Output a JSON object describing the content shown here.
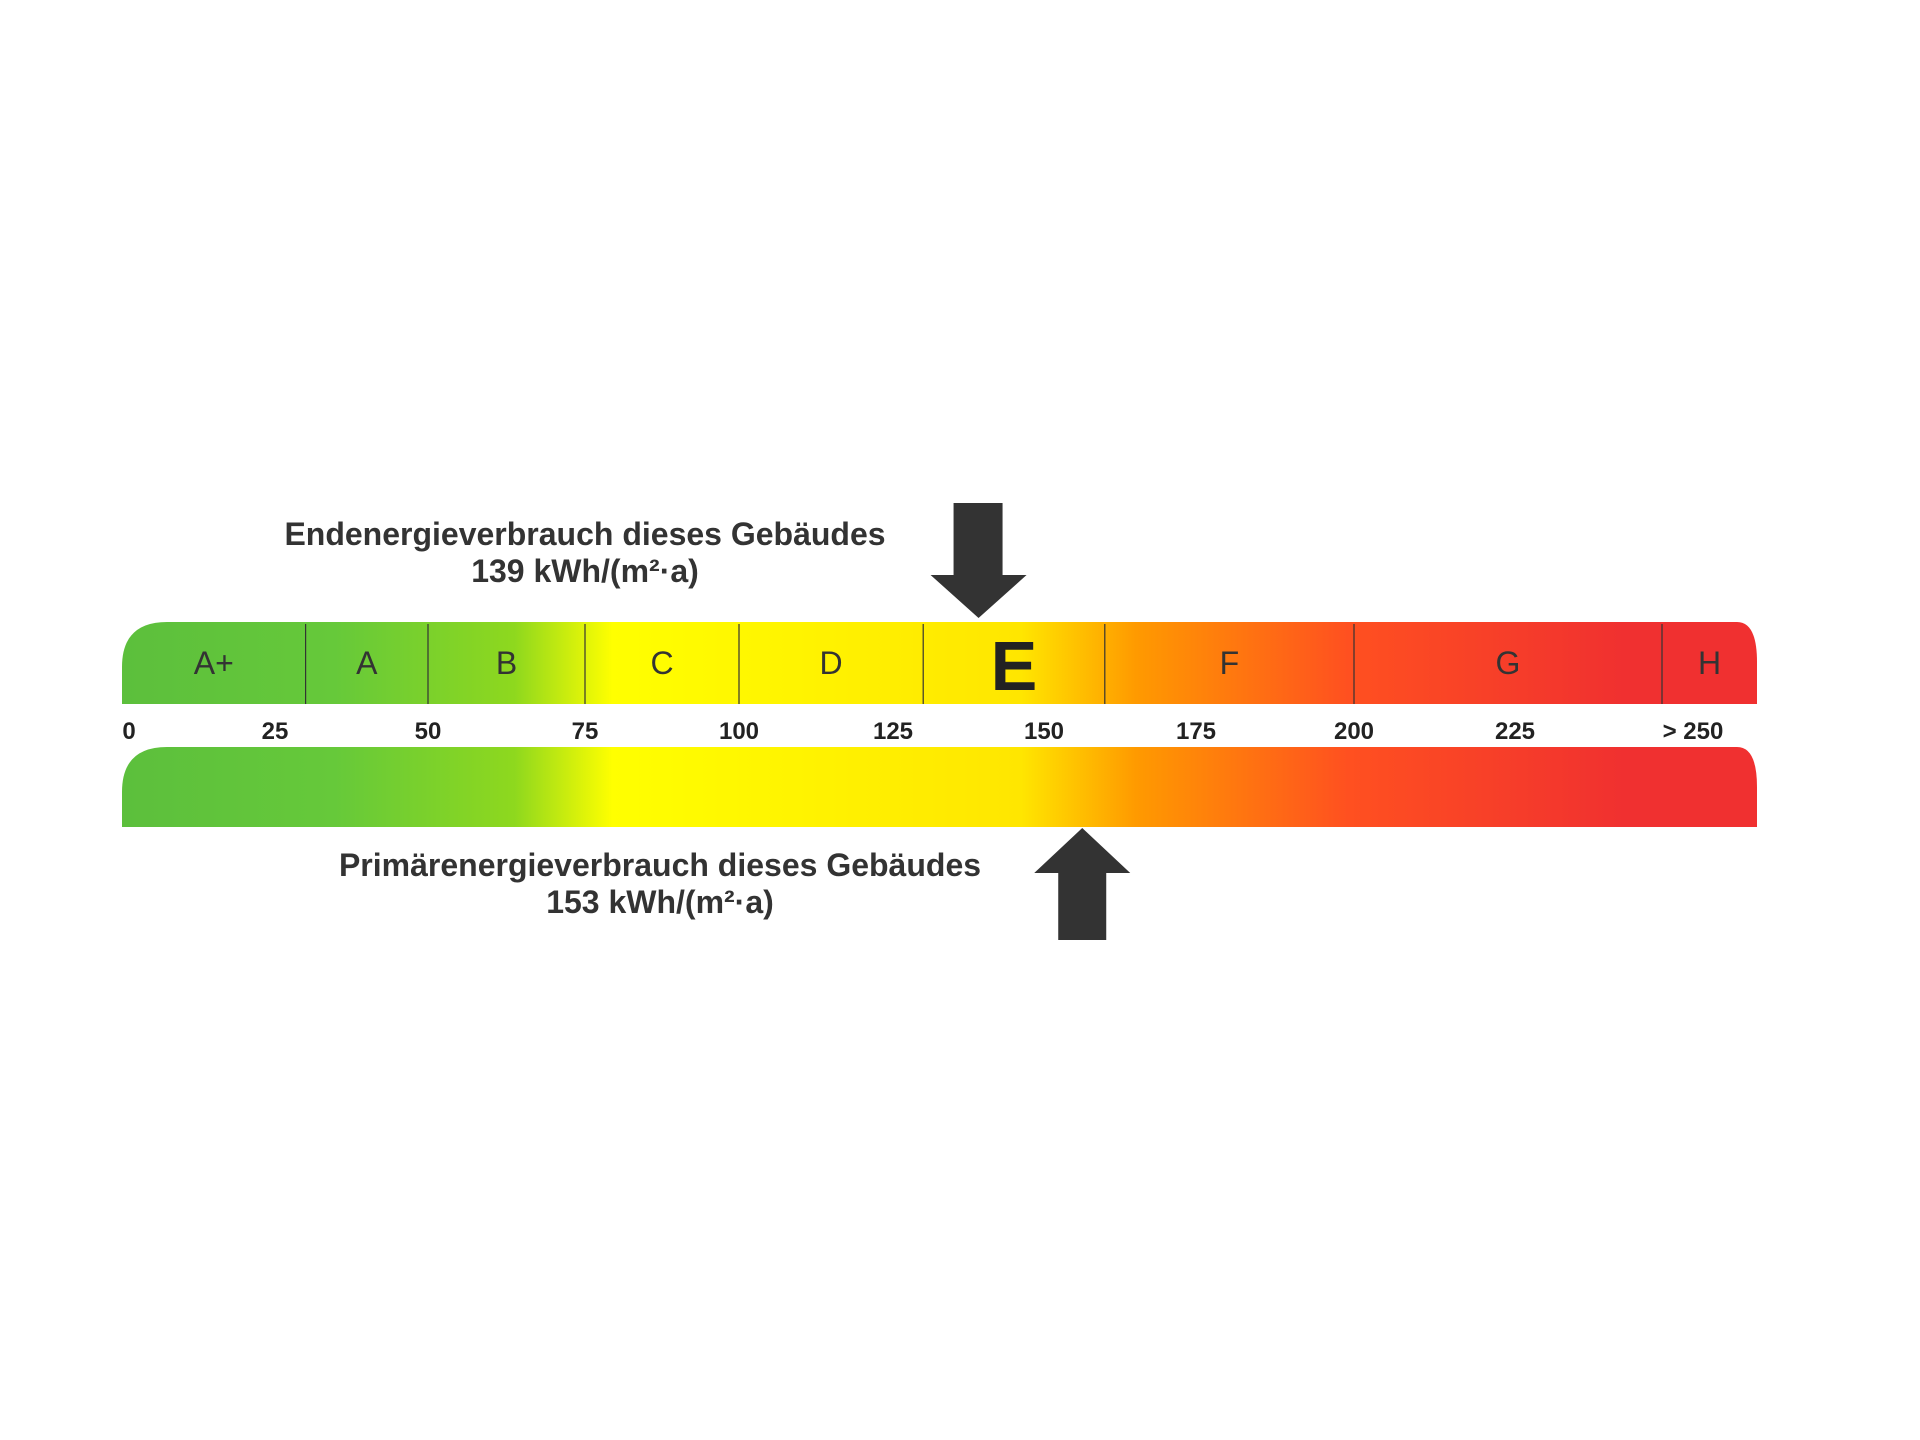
{
  "chart_data": {
    "type": "energy-scale",
    "unit": "kWh/(m²·a)",
    "tick_labels": [
      "0",
      "25",
      "50",
      "75",
      "100",
      "125",
      "150",
      "175",
      "200",
      "225",
      "> 250"
    ],
    "tick_values": [
      0,
      25,
      50,
      75,
      100,
      125,
      150,
      175,
      200,
      225,
      250
    ],
    "classes": [
      {
        "label": "A+",
        "from": 0,
        "to": 30
      },
      {
        "label": "A",
        "from": 30,
        "to": 50
      },
      {
        "label": "B",
        "from": 50,
        "to": 75
      },
      {
        "label": "C",
        "from": 75,
        "to": 100
      },
      {
        "label": "D",
        "from": 100,
        "to": 130
      },
      {
        "label": "E",
        "from": 130,
        "to": 160
      },
      {
        "label": "F",
        "from": 160,
        "to": 200
      },
      {
        "label": "G",
        "from": 200,
        "to": 250
      },
      {
        "label": "H",
        "from": 250,
        "to": 265
      }
    ],
    "highlighted_class": "E",
    "gradient_colors": [
      "#5cbf3c",
      "#66c93a",
      "#8ed81e",
      "#ffff00",
      "#ffe600",
      "#ff9a00",
      "#ff5020",
      "#f03030"
    ],
    "final_energy": {
      "title": "Endenergieverbrauch dieses Gebäudes",
      "value_text": "139 kWh/(m²·a)",
      "value": 139
    },
    "primary_energy": {
      "title": "Primärenergieverbrauch dieses Gebäudes",
      "value_text": "153 kWh/(m²·a)",
      "value": 153
    }
  }
}
